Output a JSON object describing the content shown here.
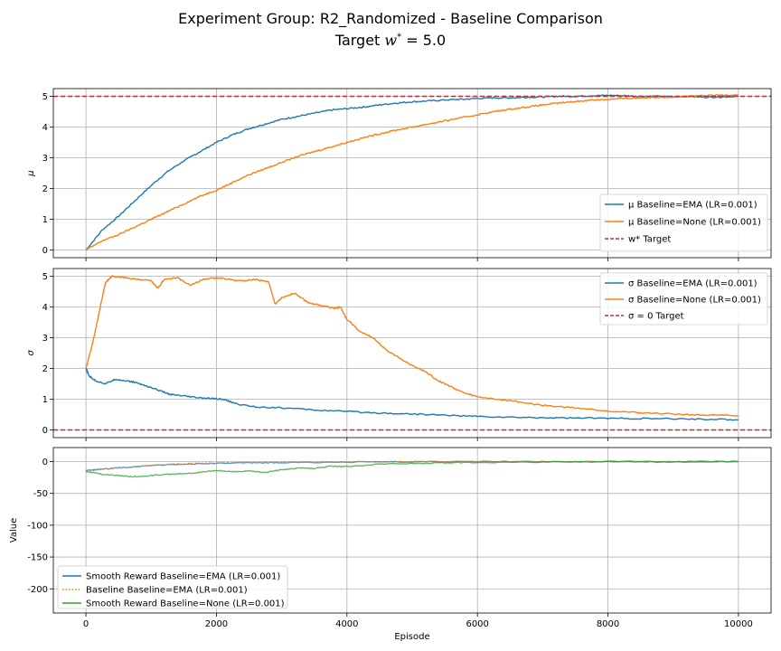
{
  "title_line1": "Experiment Group: R2_Randomized - Baseline Comparison",
  "title_line2": "Target w* = 5.0",
  "colors": {
    "blue": "#1f77b4",
    "orange": "#ff7f0e",
    "green": "#2ca02c",
    "red": "#d62728"
  },
  "chart_data": [
    {
      "type": "line",
      "ylabel": "μ",
      "xlim": [
        -500,
        10500
      ],
      "ylim": [
        -0.25,
        5.25
      ],
      "yticks": [
        0,
        1,
        2,
        3,
        4,
        5
      ],
      "grid": true,
      "legend_position": "lower-right",
      "hlines": [
        {
          "name": "w* Target",
          "y": 5.0,
          "style": "dashed",
          "color": "#d62728"
        }
      ],
      "series": [
        {
          "name": "μ Baseline=EMA (LR=0.001)",
          "color": "#1f77b4",
          "x": [
            0,
            250,
            500,
            750,
            1000,
            1250,
            1500,
            1750,
            2000,
            2250,
            2500,
            2750,
            3000,
            3250,
            3500,
            3750,
            4000,
            4250,
            4500,
            4750,
            5000,
            5250,
            5500,
            5750,
            6000,
            6250,
            6500,
            6750,
            7000,
            7250,
            7500,
            7750,
            8000,
            8250,
            8500,
            8750,
            9000,
            9250,
            9500,
            9750,
            10000
          ],
          "y": [
            0.0,
            0.65,
            1.1,
            1.6,
            2.1,
            2.55,
            2.9,
            3.2,
            3.5,
            3.75,
            3.95,
            4.1,
            4.25,
            4.35,
            4.45,
            4.55,
            4.6,
            4.65,
            4.72,
            4.78,
            4.82,
            4.85,
            4.88,
            4.9,
            4.93,
            4.95,
            4.95,
            4.97,
            4.98,
            5.0,
            5.0,
            5.02,
            5.03,
            5.02,
            5.0,
            5.0,
            4.98,
            5.0,
            4.97,
            4.98,
            5.0
          ]
        },
        {
          "name": "μ Baseline=None (LR=0.001)",
          "color": "#ff7f0e",
          "x": [
            0,
            250,
            500,
            750,
            1000,
            1250,
            1500,
            1750,
            2000,
            2250,
            2500,
            2750,
            3000,
            3250,
            3500,
            3750,
            4000,
            4250,
            4500,
            4750,
            5000,
            5250,
            5500,
            5750,
            6000,
            6250,
            6500,
            6750,
            7000,
            7250,
            7500,
            7750,
            8000,
            8250,
            8500,
            8750,
            9000,
            9250,
            9500,
            9750,
            10000
          ],
          "y": [
            0.0,
            0.3,
            0.5,
            0.75,
            1.0,
            1.25,
            1.5,
            1.75,
            1.95,
            2.2,
            2.45,
            2.65,
            2.85,
            3.05,
            3.2,
            3.35,
            3.5,
            3.65,
            3.78,
            3.9,
            4.0,
            4.1,
            4.2,
            4.3,
            4.4,
            4.5,
            4.58,
            4.65,
            4.72,
            4.78,
            4.83,
            4.88,
            4.9,
            4.93,
            4.95,
            4.97,
            4.98,
            5.0,
            5.02,
            5.04,
            5.05
          ]
        }
      ],
      "legend": [
        "μ Baseline=EMA (LR=0.001)",
        "μ Baseline=None (LR=0.001)",
        "w* Target"
      ]
    },
    {
      "type": "line",
      "ylabel": "σ",
      "xlim": [
        -500,
        10500
      ],
      "ylim": [
        -0.25,
        5.25
      ],
      "yticks": [
        0,
        1,
        2,
        3,
        4,
        5
      ],
      "grid": true,
      "legend_position": "upper-right",
      "hlines": [
        {
          "name": "σ = 0 Target",
          "y": 0.0,
          "style": "dashed",
          "color": "#d62728"
        }
      ],
      "series": [
        {
          "name": "σ Baseline=EMA (LR=0.001)",
          "color": "#1f77b4",
          "x": [
            0,
            50,
            150,
            300,
            450,
            600,
            750,
            900,
            1100,
            1300,
            1500,
            1700,
            1900,
            2100,
            2300,
            2600,
            3000,
            3500,
            4000,
            4500,
            5000,
            5500,
            6000,
            6500,
            7000,
            7500,
            8000,
            8500,
            9000,
            9500,
            10000
          ],
          "y": [
            2.0,
            1.75,
            1.6,
            1.5,
            1.65,
            1.6,
            1.55,
            1.45,
            1.3,
            1.15,
            1.1,
            1.05,
            1.02,
            1.0,
            0.85,
            0.75,
            0.72,
            0.65,
            0.6,
            0.55,
            0.52,
            0.48,
            0.44,
            0.41,
            0.4,
            0.39,
            0.38,
            0.37,
            0.36,
            0.35,
            0.33
          ]
        },
        {
          "name": "σ Baseline=None (LR=0.001)",
          "color": "#ff7f0e",
          "x": [
            0,
            100,
            200,
            300,
            400,
            600,
            800,
            1000,
            1100,
            1200,
            1400,
            1600,
            1800,
            2000,
            2200,
            2400,
            2600,
            2800,
            2900,
            3000,
            3200,
            3400,
            3600,
            3800,
            3900,
            4000,
            4200,
            4400,
            4600,
            4800,
            5000,
            5200,
            5400,
            5600,
            5800,
            6000,
            6500,
            7000,
            7500,
            8000,
            8500,
            9000,
            9500,
            10000
          ],
          "y": [
            2.0,
            2.8,
            3.8,
            4.8,
            5.0,
            4.95,
            4.9,
            4.85,
            4.6,
            4.9,
            4.95,
            4.7,
            4.9,
            4.95,
            4.9,
            4.85,
            4.9,
            4.8,
            4.1,
            4.3,
            4.45,
            4.15,
            4.05,
            3.95,
            4.0,
            3.6,
            3.2,
            3.0,
            2.6,
            2.35,
            2.1,
            1.9,
            1.6,
            1.4,
            1.2,
            1.08,
            0.95,
            0.8,
            0.72,
            0.62,
            0.56,
            0.52,
            0.48,
            0.46
          ]
        }
      ],
      "legend": [
        "σ Baseline=EMA (LR=0.001)",
        "σ Baseline=None (LR=0.001)",
        "σ = 0 Target"
      ]
    },
    {
      "type": "line",
      "ylabel": "Value",
      "xlabel": "Episode",
      "xlim": [
        -500,
        10500
      ],
      "ylim": [
        -238,
        22
      ],
      "yticks": [
        0,
        -50,
        -100,
        -150,
        -200
      ],
      "xticks": [
        0,
        2000,
        4000,
        6000,
        8000,
        10000
      ],
      "grid": true,
      "legend_position": "lower-left",
      "series": [
        {
          "name": "Smooth Reward Baseline=EMA (LR=0.001)",
          "color": "#1f77b4",
          "x": [
            0,
            250,
            500,
            750,
            1000,
            1500,
            2000,
            2500,
            3000,
            4000,
            5000,
            6000,
            7000,
            8000,
            9000,
            10000
          ],
          "y": [
            -14,
            -12,
            -10,
            -8,
            -6,
            -4,
            -3,
            -2,
            -1.5,
            -1,
            -0.5,
            0,
            0,
            0,
            0,
            0
          ]
        },
        {
          "name": "Baseline Baseline=EMA (LR=0.001)",
          "color": "#ff7f0e",
          "style": "dotted",
          "x": [
            0,
            250,
            500,
            750,
            1000,
            1500,
            2000,
            2500,
            3000,
            4000,
            5000,
            6000,
            7000,
            8000,
            9000,
            10000
          ],
          "y": [
            -16,
            -12,
            -10,
            -8,
            -6,
            -3,
            -2,
            -1.5,
            -1,
            -0.5,
            0,
            0,
            0,
            0,
            0,
            0
          ]
        },
        {
          "name": "Smooth Reward Baseline=None (LR=0.001)",
          "color": "#2ca02c",
          "x": [
            0,
            250,
            500,
            750,
            1000,
            1250,
            1500,
            1750,
            2000,
            2250,
            2500,
            2750,
            3000,
            3250,
            3500,
            3750,
            4000,
            4500,
            5000,
            5500,
            6000,
            7000,
            8000,
            9000,
            10000
          ],
          "y": [
            -15,
            -20,
            -22,
            -24,
            -22,
            -20,
            -19,
            -17,
            -14,
            -16,
            -15,
            -17,
            -13,
            -10,
            -11,
            -7,
            -8,
            -4,
            -3,
            -2,
            -1.5,
            -1,
            -0.5,
            -0.5,
            0
          ]
        }
      ],
      "legend": [
        "Smooth Reward Baseline=EMA (LR=0.001)",
        "Baseline Baseline=EMA (LR=0.001)",
        "Smooth Reward Baseline=None (LR=0.001)"
      ]
    }
  ]
}
